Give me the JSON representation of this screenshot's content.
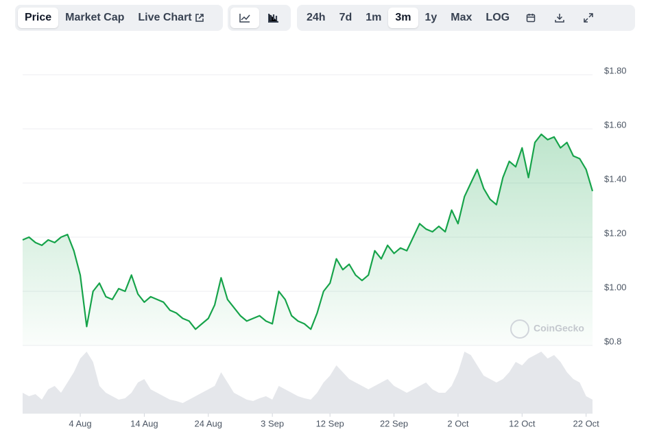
{
  "toolbar": {
    "chart_tabs": [
      "Price",
      "Market Cap",
      "Live Chart"
    ],
    "ranges": [
      "24h",
      "7d",
      "1m",
      "3m",
      "1y",
      "Max",
      "LOG"
    ]
  },
  "chart_data": {
    "type": "line",
    "watermark": "CoinGecko",
    "categories": [
      null,
      null,
      null,
      null,
      null,
      null,
      null,
      null,
      null,
      "4 Aug",
      null,
      null,
      null,
      null,
      null,
      null,
      null,
      null,
      null,
      "14 Aug",
      null,
      null,
      null,
      null,
      null,
      null,
      null,
      null,
      null,
      "24 Aug",
      null,
      null,
      null,
      null,
      null,
      null,
      null,
      null,
      null,
      "3 Sep",
      null,
      null,
      null,
      null,
      null,
      null,
      null,
      null,
      "12 Sep",
      null,
      null,
      null,
      null,
      null,
      null,
      null,
      null,
      null,
      "22 Sep",
      null,
      null,
      null,
      null,
      null,
      null,
      null,
      null,
      null,
      "2 Oct",
      null,
      null,
      null,
      null,
      null,
      null,
      null,
      null,
      null,
      "12 Oct",
      null,
      null,
      null,
      null,
      null,
      null,
      null,
      null,
      null,
      "22 Oct",
      null
    ],
    "series": [
      {
        "color": "#16a34a",
        "values": [
          1.19,
          1.2,
          1.18,
          1.17,
          1.19,
          1.18,
          1.2,
          1.21,
          1.15,
          1.06,
          0.87,
          1.0,
          1.03,
          0.98,
          0.97,
          1.01,
          1.0,
          1.06,
          0.99,
          0.96,
          0.98,
          0.97,
          0.96,
          0.93,
          0.92,
          0.9,
          0.89,
          0.86,
          0.88,
          0.9,
          0.95,
          1.05,
          0.97,
          0.94,
          0.91,
          0.89,
          0.9,
          0.91,
          0.89,
          0.88,
          1.0,
          0.97,
          0.91,
          0.89,
          0.88,
          0.86,
          0.92,
          1.0,
          1.03,
          1.12,
          1.08,
          1.1,
          1.06,
          1.04,
          1.06,
          1.15,
          1.12,
          1.17,
          1.14,
          1.16,
          1.15,
          1.2,
          1.25,
          1.23,
          1.22,
          1.24,
          1.22,
          1.3,
          1.25,
          1.35,
          1.4,
          1.45,
          1.38,
          1.34,
          1.32,
          1.42,
          1.48,
          1.46,
          1.53,
          1.42,
          1.55,
          1.58,
          1.56,
          1.57,
          1.53,
          1.55,
          1.5,
          1.49,
          1.45,
          1.37
        ]
      }
    ],
    "volume": [
      30,
      25,
      28,
      20,
      35,
      40,
      30,
      45,
      60,
      80,
      90,
      75,
      40,
      30,
      25,
      20,
      22,
      30,
      45,
      50,
      35,
      30,
      25,
      20,
      18,
      15,
      20,
      25,
      30,
      35,
      40,
      60,
      45,
      30,
      25,
      20,
      18,
      22,
      25,
      20,
      40,
      35,
      30,
      25,
      22,
      20,
      30,
      45,
      55,
      70,
      60,
      50,
      45,
      40,
      35,
      40,
      45,
      50,
      40,
      35,
      30,
      35,
      40,
      45,
      35,
      30,
      30,
      40,
      60,
      90,
      85,
      70,
      55,
      50,
      45,
      50,
      60,
      75,
      70,
      80,
      85,
      90,
      80,
      85,
      75,
      60,
      50,
      45,
      25,
      20
    ],
    "ylim": [
      0.8,
      1.8
    ],
    "yticks": [
      {
        "value": 1.8,
        "label": "$1.80"
      },
      {
        "value": 1.6,
        "label": "$1.60"
      },
      {
        "value": 1.4,
        "label": "$1.40"
      },
      {
        "value": 1.2,
        "label": "$1.20"
      },
      {
        "value": 1.0,
        "label": "$1.00"
      },
      {
        "value": 0.8,
        "label": "$0.8"
      }
    ],
    "grid": true
  }
}
